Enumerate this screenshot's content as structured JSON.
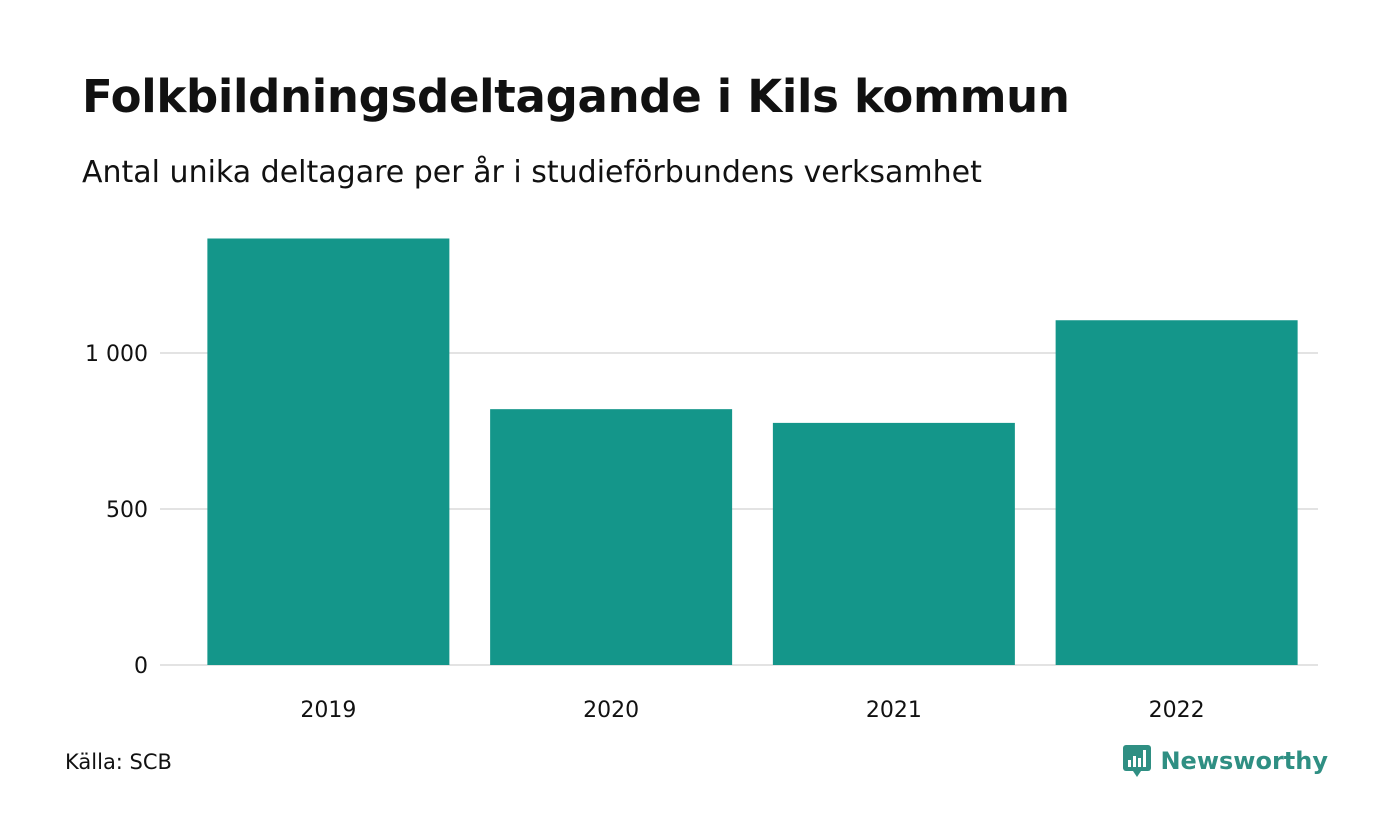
{
  "title": "Folkbildningsdeltagande i Kils kommun",
  "subtitle": "Antal unika deltagare per år i studieförbundens verksamhet",
  "source": "Källa: SCB",
  "brand": {
    "name": "Newsworthy",
    "icon": "newsworthy-logo-icon",
    "color": "#2f8f83"
  },
  "colors": {
    "bar": "#14968a",
    "grid": "#e3e3e3"
  },
  "chart_data": {
    "type": "bar",
    "title": "Folkbildningsdeltagande i Kils kommun",
    "subtitle": "Antal unika deltagare per år i studieförbundens verksamhet",
    "categories": [
      "2019",
      "2020",
      "2021",
      "2022"
    ],
    "values": [
      1367,
      820,
      776,
      1105
    ],
    "xlabel": "",
    "ylabel": "",
    "ylim": [
      0,
      1400
    ],
    "yticks": [
      0,
      500,
      1000
    ],
    "ytick_labels": [
      "0",
      "500",
      "1 000"
    ],
    "grid": true,
    "legend": "none"
  }
}
